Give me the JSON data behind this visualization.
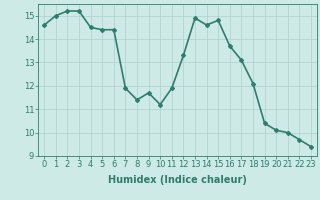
{
  "xlabel": "Humidex (Indice chaleur)",
  "x": [
    0,
    1,
    2,
    3,
    4,
    5,
    6,
    7,
    8,
    9,
    10,
    11,
    12,
    13,
    14,
    15,
    16,
    17,
    18,
    19,
    20,
    21,
    22,
    23
  ],
  "y": [
    14.6,
    15.0,
    15.2,
    15.2,
    14.5,
    14.4,
    14.4,
    11.9,
    11.4,
    11.7,
    11.2,
    11.9,
    13.3,
    14.9,
    14.6,
    14.8,
    13.7,
    13.1,
    12.1,
    10.4,
    10.1,
    10.0,
    9.7,
    9.4
  ],
  "line_color": "#2e7d6e",
  "marker": "D",
  "marker_size": 2,
  "bg_color": "#ceeae7",
  "grid_color": "#aecfcc",
  "ylim": [
    9,
    15.5
  ],
  "yticks": [
    9,
    10,
    11,
    12,
    13,
    14,
    15
  ],
  "xticks": [
    0,
    1,
    2,
    3,
    4,
    5,
    6,
    7,
    8,
    9,
    10,
    11,
    12,
    13,
    14,
    15,
    16,
    17,
    18,
    19,
    20,
    21,
    22,
    23
  ],
  "xlabel_fontsize": 7,
  "tick_fontsize": 6,
  "line_width": 1.2
}
